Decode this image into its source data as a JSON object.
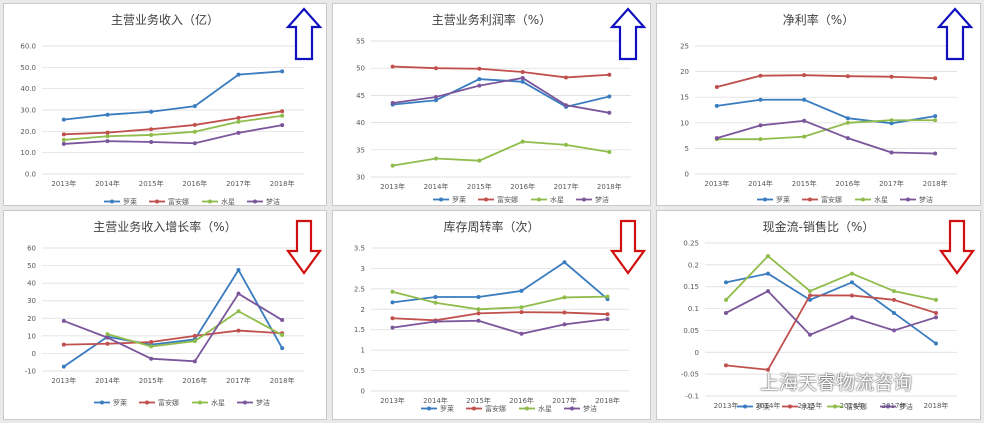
{
  "colors": {
    "luolai": "#3a7cc0",
    "fuanna": "#c0504d",
    "shuixing": "#8fbc4b",
    "mengjie": "#7b569b"
  },
  "watermark": {
    "text": "上海天睿物流咨询",
    "icon": "wechat-icon"
  },
  "chart_data": [
    {
      "type": "line",
      "title": "主营业务收入（亿）",
      "categories": [
        "2013年",
        "2014年",
        "2015年",
        "2016年",
        "2017年",
        "2018年"
      ],
      "ylim": [
        0,
        60
      ],
      "yticks": [
        "0.0",
        "10.0",
        "20.0",
        "30.0",
        "40.0",
        "50.0",
        "60.0"
      ],
      "series": [
        {
          "name": "罗莱",
          "color": "#3a7cc0",
          "values": [
            25.5,
            27.8,
            29.2,
            31.8,
            46.6,
            48.1
          ]
        },
        {
          "name": "富安娜",
          "color": "#c0504d",
          "values": [
            18.6,
            19.4,
            21.0,
            23.0,
            26.3,
            29.4
          ]
        },
        {
          "name": "水星",
          "color": "#8fbc4b",
          "values": [
            16.0,
            17.7,
            18.3,
            19.8,
            24.5,
            27.3
          ]
        },
        {
          "name": "梦洁",
          "color": "#7b569b",
          "values": [
            14.1,
            15.4,
            15.0,
            14.4,
            19.3,
            22.9
          ]
        }
      ],
      "arrow": "up"
    },
    {
      "type": "line",
      "title": "主营业务利润率（%）",
      "categories": [
        "2013年",
        "2014年",
        "2015年",
        "2016年",
        "2017年",
        "2018年"
      ],
      "ylim": [
        30,
        55
      ],
      "yticks": [
        "30",
        "35",
        "40",
        "45",
        "50",
        "55"
      ],
      "series": [
        {
          "name": "罗莱",
          "color": "#3a7cc0",
          "values": [
            43.3,
            44.1,
            48.0,
            47.5,
            42.9,
            44.8
          ]
        },
        {
          "name": "富安娜",
          "color": "#c0504d",
          "values": [
            50.3,
            50.0,
            49.9,
            49.3,
            48.3,
            48.8
          ]
        },
        {
          "name": "水星",
          "color": "#8fbc4b",
          "values": [
            32.1,
            33.4,
            33.0,
            36.5,
            35.9,
            34.6
          ]
        },
        {
          "name": "梦洁",
          "color": "#7b569b",
          "values": [
            43.6,
            44.7,
            46.8,
            48.2,
            43.2,
            41.8
          ]
        }
      ],
      "arrow": "up"
    },
    {
      "type": "line",
      "title": "净利率（%）",
      "categories": [
        "2013年",
        "2014年",
        "2015年",
        "2016年",
        "2017年",
        "2018年"
      ],
      "ylim": [
        0,
        25
      ],
      "yticks": [
        "0",
        "5",
        "10",
        "15",
        "20",
        "25"
      ],
      "series": [
        {
          "name": "罗莱",
          "color": "#3a7cc0",
          "values": [
            13.3,
            14.5,
            14.5,
            10.9,
            9.9,
            11.3
          ]
        },
        {
          "name": "富安娜",
          "color": "#c0504d",
          "values": [
            17.0,
            19.2,
            19.3,
            19.1,
            19.0,
            18.7
          ]
        },
        {
          "name": "水星",
          "color": "#8fbc4b",
          "values": [
            6.8,
            6.8,
            7.3,
            10.0,
            10.5,
            10.5
          ]
        },
        {
          "name": "梦洁",
          "color": "#7b569b",
          "values": [
            7.0,
            9.5,
            10.4,
            7.0,
            4.2,
            4.0
          ]
        }
      ],
      "arrow": "up"
    },
    {
      "type": "line",
      "title": "主营业务收入增长率（%）",
      "categories": [
        "2013年",
        "2014年",
        "2015年",
        "2016年",
        "2017年",
        "2018年"
      ],
      "ylim": [
        -10,
        60
      ],
      "yticks": [
        "-10",
        "0",
        "10",
        "20",
        "30",
        "40",
        "50",
        "60"
      ],
      "series": [
        {
          "name": "罗莱",
          "color": "#3a7cc0",
          "values": [
            -7.5,
            9.5,
            5.0,
            8.0,
            47.5,
            3.0
          ]
        },
        {
          "name": "富安娜",
          "color": "#c0504d",
          "values": [
            5.0,
            5.5,
            6.5,
            10.0,
            13.0,
            11.5
          ]
        },
        {
          "name": "水星",
          "color": "#8fbc4b",
          "values": [
            null,
            11.0,
            4.0,
            7.0,
            24.0,
            10.5
          ]
        },
        {
          "name": "梦洁",
          "color": "#7b569b",
          "values": [
            18.5,
            9.0,
            -3.0,
            -4.5,
            34.0,
            19.0
          ]
        }
      ],
      "arrow": "down"
    },
    {
      "type": "line",
      "title": "库存周转率（次）",
      "categories": [
        "2013年",
        "2014年",
        "2015年",
        "2016年",
        "2017年",
        "2018年"
      ],
      "ylim": [
        0,
        3.5
      ],
      "yticks": [
        "0",
        "0.5",
        "1",
        "1.5",
        "2",
        "2.5",
        "3",
        "3.5"
      ],
      "series": [
        {
          "name": "罗莱",
          "color": "#3a7cc0",
          "values": [
            2.17,
            2.3,
            2.3,
            2.45,
            3.15,
            2.25
          ]
        },
        {
          "name": "富安娜",
          "color": "#c0504d",
          "values": [
            1.78,
            1.73,
            1.9,
            1.93,
            1.92,
            1.88
          ]
        },
        {
          "name": "水星",
          "color": "#8fbc4b",
          "values": [
            2.43,
            2.16,
            2.0,
            2.05,
            2.29,
            2.31
          ]
        },
        {
          "name": "梦洁",
          "color": "#7b569b",
          "values": [
            1.55,
            1.7,
            1.72,
            1.4,
            1.63,
            1.76
          ]
        }
      ],
      "arrow": "down"
    },
    {
      "type": "line",
      "title": "现金流-销售比（%）",
      "categories": [
        "2013年",
        "2014年",
        "2015年",
        "2016年",
        "2017年",
        "2018年"
      ],
      "ylim": [
        -0.1,
        0.25
      ],
      "yticks": [
        "-0.1",
        "-0.05",
        "0",
        "0.05",
        "0.1",
        "0.15",
        "0.2",
        "0.25"
      ],
      "series": [
        {
          "name": "罗莱",
          "color": "#3a7cc0",
          "values": [
            0.16,
            0.18,
            0.12,
            0.16,
            0.09,
            0.02
          ]
        },
        {
          "name": "水星",
          "color": "#c0504d",
          "values": [
            -0.03,
            -0.04,
            0.13,
            0.13,
            0.12,
            0.09
          ]
        },
        {
          "name": "富安娜",
          "color": "#8fbc4b",
          "values": [
            0.12,
            0.22,
            0.14,
            0.18,
            0.14,
            0.12
          ]
        },
        {
          "name": "梦洁",
          "color": "#7b569b",
          "values": [
            0.09,
            0.14,
            0.04,
            0.08,
            0.05,
            0.08
          ]
        }
      ],
      "arrow": "down"
    }
  ]
}
